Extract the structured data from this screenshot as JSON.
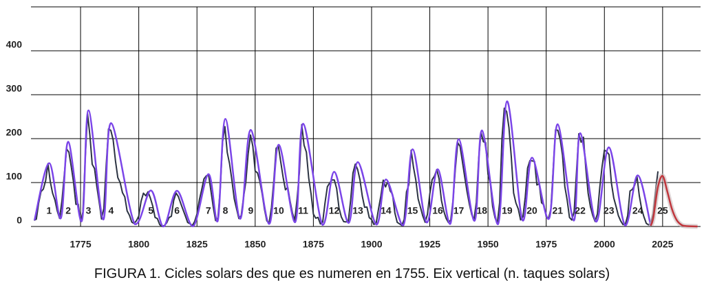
{
  "chart_data": {
    "type": "line",
    "caption": "FIGURA 1. Cicles solars des que es numeren en 1755. Eix vertical (n. taques solars)",
    "xlim": [
      1753.7,
      2041.3
    ],
    "xticks": [
      1775,
      1800,
      1825,
      1850,
      1875,
      1900,
      1925,
      1950,
      1975,
      2000,
      2025
    ],
    "ylim": [
      0,
      500
    ],
    "yticks": [
      0,
      100,
      200,
      300,
      400
    ],
    "grid": true,
    "cycle_labels": [
      "1",
      "2",
      "3",
      "4",
      "5",
      "6",
      "7",
      "8",
      "9",
      "10",
      "11",
      "12",
      "13",
      "14",
      "15",
      "16",
      "17",
      "18",
      "19",
      "20",
      "21",
      "22",
      "23",
      "24",
      "25"
    ],
    "series": [
      {
        "color": "#2b3342",
        "smooth": false,
        "x": [
          1755,
          1756,
          1757,
          1758,
          1759,
          1760,
          1761,
          1762,
          1763,
          1764,
          1765,
          1766,
          1767,
          1768,
          1769,
          1770,
          1771,
          1772,
          1773,
          1774,
          1775,
          1776,
          1777,
          1778,
          1779,
          1780,
          1781,
          1782,
          1783,
          1784,
          1785,
          1786,
          1787,
          1788,
          1789,
          1790,
          1791,
          1792,
          1793,
          1794,
          1795,
          1796,
          1797,
          1798,
          1799,
          1800,
          1801,
          1802,
          1803,
          1804,
          1805,
          1806,
          1807,
          1808,
          1809,
          1810,
          1811,
          1812,
          1813,
          1814,
          1815,
          1816,
          1817,
          1818,
          1819,
          1820,
          1821,
          1822,
          1823,
          1824,
          1825,
          1826,
          1827,
          1828,
          1829,
          1830,
          1831,
          1832,
          1833,
          1834,
          1835,
          1836,
          1837,
          1838,
          1839,
          1840,
          1841,
          1842,
          1843,
          1844,
          1845,
          1846,
          1847,
          1848,
          1849,
          1850,
          1851,
          1852,
          1853,
          1854,
          1855,
          1856,
          1857,
          1858,
          1859,
          1860,
          1861,
          1862,
          1863,
          1864,
          1865,
          1866,
          1867,
          1868,
          1869,
          1870,
          1871,
          1872,
          1873,
          1874,
          1875,
          1876,
          1877,
          1878,
          1879,
          1880,
          1881,
          1882,
          1883,
          1884,
          1885,
          1886,
          1887,
          1888,
          1889,
          1890,
          1891,
          1892,
          1893,
          1894,
          1895,
          1896,
          1897,
          1898,
          1899,
          1900,
          1901,
          1902,
          1903,
          1904,
          1905,
          1906,
          1907,
          1908,
          1909,
          1910,
          1911,
          1912,
          1913,
          1914,
          1915,
          1916,
          1917,
          1918,
          1919,
          1920,
          1921,
          1922,
          1923,
          1924,
          1925,
          1926,
          1927,
          1928,
          1929,
          1930,
          1931,
          1932,
          1933,
          1934,
          1935,
          1936,
          1937,
          1938,
          1939,
          1940,
          1941,
          1942,
          1943,
          1944,
          1945,
          1946,
          1947,
          1948,
          1949,
          1950,
          1951,
          1952,
          1953,
          1954,
          1955,
          1956,
          1957,
          1958,
          1959,
          1960,
          1961,
          1962,
          1963,
          1964,
          1965,
          1966,
          1967,
          1968,
          1969,
          1970,
          1971,
          1972,
          1973,
          1974,
          1975,
          1976,
          1977,
          1978,
          1979,
          1980,
          1981,
          1982,
          1983,
          1984,
          1985,
          1986,
          1987,
          1988,
          1989,
          1990,
          1991,
          1992,
          1993,
          1994,
          1995,
          1996,
          1997,
          1998,
          1999,
          2000,
          2001,
          2002,
          2003,
          2004,
          2005,
          2006,
          2007,
          2008,
          2009,
          2010,
          2011,
          2012,
          2013,
          2014,
          2015,
          2016,
          2017,
          2018,
          2019,
          2020,
          2021,
          2022,
          2023
        ],
        "values": [
          14.0,
          16.7,
          53.3,
          79.3,
          85.0,
          104.2,
          143.1,
          101.9,
          75.7,
          60.3,
          35.2,
          18.5,
          58.3,
          116.9,
          176.6,
          169.0,
          136.2,
          100.4,
          50.4,
          50.8,
          11.7,
          32.6,
          153.4,
          256.8,
          208.0,
          141.5,
          132.0,
          90.7,
          55.6,
          17.0,
          41.2,
          138.6,
          222.0,
          218.7,
          197.1,
          149.2,
          111.3,
          100.2,
          77.0,
          67.5,
          35.5,
          25.5,
          10.0,
          6.8,
          13.2,
          23.8,
          57.4,
          75.8,
          70.0,
          79.0,
          64.3,
          46.7,
          20.6,
          18.0,
          4.2,
          0.0,
          2.3,
          8.3,
          20.3,
          23.2,
          59.0,
          76.3,
          68.3,
          52.9,
          38.5,
          24.2,
          9.2,
          6.3,
          2.2,
          11.4,
          28.2,
          59.9,
          83.0,
          108.5,
          115.2,
          117.4,
          80.8,
          44.3,
          13.4,
          19.5,
          85.8,
          192.7,
          227.3,
          168.7,
          143.0,
          105.5,
          63.3,
          40.3,
          18.1,
          25.1,
          65.8,
          102.7,
          166.3,
          208.3,
          182.5,
          126.3,
          122.0,
          102.7,
          74.1,
          39.0,
          12.7,
          8.2,
          43.4,
          104.4,
          178.3,
          182.2,
          146.6,
          112.1,
          83.5,
          89.2,
          57.8,
          30.7,
          13.9,
          62.8,
          123.6,
          232.0,
          185.3,
          169.2,
          110.1,
          74.5,
          28.3,
          18.9,
          20.7,
          5.7,
          10.0,
          53.7,
          90.5,
          99.0,
          106.1,
          105.8,
          86.3,
          42.4,
          21.8,
          11.2,
          10.4,
          11.8,
          59.5,
          121.7,
          142.0,
          130.0,
          106.6,
          69.4,
          43.8,
          44.4,
          20.2,
          15.7,
          4.6,
          8.5,
          40.8,
          70.1,
          105.5,
          90.1,
          102.8,
          80.9,
          73.2,
          30.9,
          9.5,
          6.0,
          2.4,
          16.1,
          79.0,
          95.0,
          173.6,
          134.6,
          105.7,
          62.7,
          43.5,
          23.7,
          9.7,
          27.9,
          74.0,
          106.5,
          114.7,
          129.7,
          108.2,
          59.4,
          35.1,
          18.6,
          9.2,
          14.6,
          60.2,
          132.8,
          190.6,
          182.6,
          148.0,
          113.0,
          79.2,
          50.8,
          27.1,
          16.1,
          55.3,
          154.3,
          214.7,
          193.0,
          190.7,
          118.9,
          98.3,
          45.0,
          20.1,
          6.6,
          54.2,
          200.7,
          269.3,
          261.7,
          225.1,
          159.0,
          76.4,
          53.4,
          39.9,
          15.0,
          22.0,
          66.8,
          132.9,
          150.0,
          149.4,
          148.0,
          94.4,
          97.6,
          54.1,
          49.2,
          22.5,
          18.4,
          39.3,
          131.0,
          220.1,
          218.9,
          198.9,
          162.4,
          91.0,
          60.5,
          20.6,
          14.8,
          33.9,
          123.0,
          211.1,
          191.8,
          203.3,
          133.0,
          76.1,
          44.9,
          25.1,
          11.6,
          28.9,
          88.3,
          136.3,
          173.9,
          170.4,
          163.6,
          99.3,
          65.3,
          45.8,
          24.7,
          12.6,
          4.2,
          4.8,
          24.9,
          80.8,
          84.5,
          94.0,
          113.3,
          69.8,
          39.8,
          21.7,
          7.0,
          3.6,
          8.8,
          29.6,
          83.2,
          125.5
        ]
      },
      {
        "color": "#7b45e8",
        "smooth": true,
        "x": [
          1755.2,
          1761.5,
          1766.5,
          1769.7,
          1775.5,
          1778.4,
          1784.7,
          1788.1,
          1798.3,
          1805.2,
          1810.6,
          1816.4,
          1823.3,
          1829.9,
          1833.9,
          1837.2,
          1843.5,
          1848.1,
          1855.9,
          1860.1,
          1867.2,
          1870.6,
          1878.9,
          1883.9,
          1890.2,
          1894.1,
          1902.0,
          1906.2,
          1913.6,
          1917.6,
          1923.6,
          1928.4,
          1933.8,
          1937.4,
          1944.2,
          1947.4,
          1954.3,
          1958.2,
          1964.8,
          1968.9,
          1976.2,
          1979.9,
          1986.8,
          1989.6,
          1996.4,
          2001.9,
          2008.9,
          2014.3,
          2019.9
        ],
        "values": [
          14.0,
          144.1,
          18.6,
          193.0,
          12.0,
          264.3,
          15.9,
          235.3,
          5.3,
          82.0,
          0.0,
          81.2,
          0.2,
          119.2,
          12.2,
          244.9,
          17.6,
          219.9,
          6.0,
          186.2,
          9.9,
          234.0,
          3.7,
          124.4,
          8.3,
          146.5,
          4.5,
          107.1,
          2.5,
          175.7,
          9.4,
          130.2,
          5.8,
          198.6,
          12.9,
          218.7,
          5.1,
          285.0,
          14.3,
          156.6,
          17.8,
          232.9,
          13.5,
          212.5,
          11.2,
          180.3,
          2.2,
          116.4,
          1.8
        ]
      },
      {
        "color": "#c0363c",
        "smooth": true,
        "x": [
          2019.9,
          2021,
          2023,
          2025,
          2027,
          2029,
          2031,
          2033,
          2035,
          2040
        ],
        "values": [
          1.8,
          20,
          90,
          115,
          80,
          40,
          15,
          4,
          1,
          0
        ]
      }
    ]
  }
}
